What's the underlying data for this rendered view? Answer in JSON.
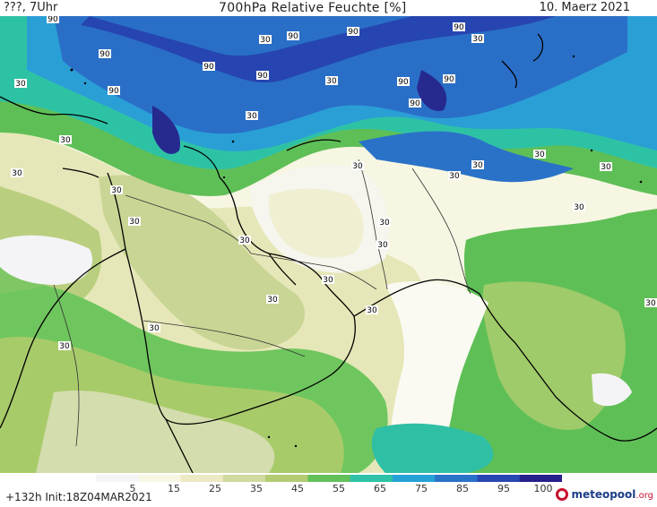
{
  "header": {
    "left": "???, 7Uhr",
    "title": "700hPa Relative Feuchte [%]",
    "date": "10. Maerz 2021"
  },
  "contour_labels": [
    "90",
    "90",
    "90",
    "90",
    "90",
    "90",
    "90",
    "90",
    "90",
    "90",
    "90",
    "30",
    "30",
    "30",
    "30",
    "30",
    "30",
    "30",
    "30",
    "30",
    "30",
    "30",
    "30",
    "30",
    "30",
    "30",
    "30",
    "30",
    "30",
    "30",
    "30",
    "30",
    "30",
    "30",
    "30"
  ],
  "legend": {
    "ticks": [
      "5",
      "15",
      "25",
      "35",
      "45",
      "55",
      "65",
      "75",
      "85",
      "95",
      "100"
    ],
    "colors": [
      "#f4f4f6",
      "#f7f6e3",
      "#ece9c4",
      "#cfd9a0",
      "#b3cb72",
      "#63c15a",
      "#2fc2a8",
      "#24a2d6",
      "#2a72c8",
      "#2747b2",
      "#261f8c"
    ]
  },
  "footer": {
    "init": "+132h  Init:18Z04MAR2021",
    "logo_main": "meteopool",
    "logo_tld": ".org"
  }
}
